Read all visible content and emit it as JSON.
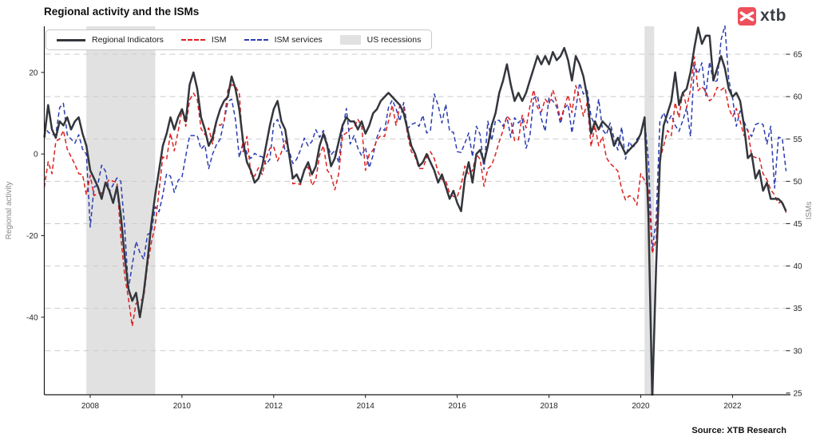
{
  "title": "Regional activity and the ISMs",
  "source_note": "Source: XTB Research",
  "logo": {
    "text": "xtb",
    "mark_color": "#ee4f5c",
    "text_color": "#3d3f46"
  },
  "legend": {
    "items": [
      {
        "label": "Regional Indicators",
        "swatch": "line-solid",
        "color": "#33363c"
      },
      {
        "label": "ISM",
        "swatch": "line-dashed",
        "color": "#dc2020"
      },
      {
        "label": "ISM services",
        "swatch": "line-dashed",
        "color": "#2a3cb0"
      },
      {
        "label": "US recessions",
        "swatch": "patch",
        "color": "#e1e1e1"
      }
    ]
  },
  "colors": {
    "regional": "#33363c",
    "ism": "#dc2020",
    "ism_services": "#2a3cb0",
    "recession_band": "#e1e1e1",
    "grid": "#cbcbcb",
    "spine": "#1a1a1a",
    "tick_label": "#262626",
    "axis_label": "#8a8a8a"
  },
  "axes": {
    "left_label": "Regional activity",
    "right_label": "ISMs",
    "left_ticks": [
      20,
      0,
      -20,
      -40
    ],
    "right_ticks": [
      65,
      60,
      55,
      50,
      45,
      40,
      35,
      30,
      25
    ],
    "x_ticks": [
      2008,
      2010,
      2012,
      2014,
      2016,
      2018,
      2020,
      2022
    ]
  },
  "chart_data": {
    "type": "line",
    "title": "Regional activity and the ISMs",
    "frequency": "monthly",
    "x_start": "2007-01",
    "x_end": "2023-03",
    "xlim": [
      2007.0,
      2023.167
    ],
    "left_ylim": [
      -59.0,
      31.3
    ],
    "right_ylim": [
      24.8,
      68.3
    ],
    "grid": "horizontal-dashed-at-right-ticks",
    "legend_position": "top-left",
    "recessions": [
      {
        "start": 2007.917,
        "end": 2009.417
      },
      {
        "start": 2020.083,
        "end": 2020.292
      }
    ],
    "series": [
      {
        "name": "Regional Indicators",
        "axis": "left",
        "style": "solid",
        "values": [
          4,
          12,
          6,
          4,
          8,
          7,
          9,
          6,
          8,
          9,
          5,
          2,
          -4,
          -6,
          -8,
          -11,
          -7,
          -9,
          -12,
          -8,
          -15,
          -25,
          -33,
          -36,
          -34,
          -40,
          -34,
          -26,
          -17,
          -10,
          -4,
          2,
          5,
          9,
          6,
          9,
          11,
          8,
          17,
          20,
          16,
          9,
          6,
          2,
          4,
          8,
          11,
          13,
          14,
          19,
          16,
          11,
          3,
          -2,
          -4,
          -7,
          -6,
          -3,
          2,
          7,
          11,
          13,
          8,
          6,
          0,
          -6,
          -5,
          -7,
          -4,
          -2,
          -5,
          -3,
          2,
          5,
          2,
          -3,
          -1,
          3,
          7,
          9,
          8,
          8,
          6,
          8,
          5,
          7,
          10,
          11,
          13,
          14,
          15,
          14,
          13,
          12,
          10,
          6,
          2,
          0,
          -3,
          -2,
          0,
          -2,
          -4,
          -7,
          -5,
          -8,
          -11,
          -9,
          -12,
          -14,
          -6,
          -2,
          -7,
          0,
          1,
          -2,
          2,
          7,
          10,
          15,
          18,
          22,
          17,
          13,
          15,
          13,
          15,
          18,
          21,
          24,
          22,
          24,
          22,
          25,
          23,
          24,
          26,
          23,
          18,
          24,
          22,
          19,
          14,
          5,
          8,
          6,
          8,
          7,
          6,
          2,
          4,
          2,
          0,
          1,
          2,
          3,
          5,
          9,
          -15,
          -60,
          -28,
          -2,
          7,
          10,
          13,
          20,
          12,
          15,
          16,
          20,
          26,
          31,
          27,
          29,
          29,
          18,
          21,
          24,
          21,
          16,
          14,
          15,
          13,
          7,
          -1,
          0,
          -6,
          -4,
          -9,
          -7,
          -11,
          -11,
          -11,
          -12,
          -14
        ]
      },
      {
        "name": "ISM",
        "axis": "right",
        "style": "dashed",
        "values": [
          49.3,
          52.3,
          50.9,
          54.7,
          55.0,
          56.0,
          53.8,
          52.9,
          52.0,
          50.9,
          50.8,
          48.4,
          50.7,
          48.3,
          48.6,
          48.6,
          49.6,
          50.2,
          50.0,
          49.9,
          43.5,
          38.9,
          36.2,
          32.9,
          35.6,
          35.8,
          36.3,
          40.1,
          42.8,
          44.8,
          48.9,
          52.9,
          52.6,
          55.7,
          53.6,
          55.9,
          58.4,
          56.5,
          59.6,
          60.4,
          59.7,
          56.2,
          55.5,
          56.3,
          54.4,
          56.9,
          56.6,
          57.0,
          60.8,
          61.4,
          61.2,
          60.4,
          53.5,
          55.3,
          50.9,
          50.6,
          51.6,
          50.8,
          52.7,
          53.9,
          54.1,
          52.4,
          53.4,
          54.8,
          53.5,
          49.7,
          49.8,
          49.6,
          51.5,
          51.7,
          49.5,
          50.2,
          53.1,
          54.2,
          51.3,
          50.7,
          49.0,
          50.9,
          55.4,
          55.7,
          56.2,
          56.4,
          57.3,
          56.5,
          51.3,
          53.2,
          53.7,
          54.9,
          55.4,
          55.3,
          57.1,
          59.0,
          56.6,
          59.0,
          58.7,
          55.5,
          53.5,
          52.9,
          51.5,
          51.5,
          52.8,
          53.5,
          52.7,
          51.1,
          50.2,
          50.1,
          48.6,
          48.2,
          48.2,
          49.5,
          51.8,
          50.8,
          51.3,
          53.2,
          52.6,
          49.4,
          51.5,
          51.9,
          53.2,
          54.7,
          56.0,
          57.7,
          57.2,
          54.8,
          54.9,
          57.8,
          56.3,
          58.8,
          60.8,
          58.7,
          58.2,
          59.7,
          59.1,
          60.8,
          59.3,
          57.3,
          58.7,
          60.2,
          58.1,
          61.3,
          59.8,
          57.7,
          59.3,
          54.1,
          56.6,
          54.2,
          55.3,
          52.8,
          52.1,
          51.7,
          51.2,
          49.1,
          47.8,
          48.3,
          48.1,
          47.2,
          50.9,
          50.1,
          49.1,
          41.5,
          43.1,
          52.6,
          54.2,
          56.0,
          55.4,
          59.3,
          57.5,
          60.7,
          58.7,
          60.8,
          64.7,
          60.7,
          61.2,
          60.6,
          59.5,
          59.9,
          61.1,
          60.8,
          61.1,
          58.7,
          57.6,
          58.6,
          57.1,
          55.4,
          56.1,
          53.0,
          52.8,
          52.8,
          50.9,
          50.2,
          49.0,
          48.4,
          47.4,
          47.7,
          46.3
        ]
      },
      {
        "name": "ISM services",
        "axis": "right",
        "style": "dashed",
        "values": [
          56.8,
          55.8,
          55.5,
          55.5,
          58.7,
          59.2,
          55.5,
          55.0,
          54.5,
          55.5,
          53.8,
          53.2,
          44.6,
          49.3,
          49.6,
          51.9,
          51.2,
          48.8,
          49.6,
          50.4,
          50.0,
          44.6,
          37.3,
          40.1,
          42.9,
          41.6,
          40.8,
          43.7,
          44.0,
          47.0,
          46.4,
          48.4,
          50.9,
          50.6,
          48.7,
          50.1,
          50.5,
          53.0,
          55.4,
          55.4,
          55.4,
          53.8,
          54.3,
          51.5,
          53.2,
          54.3,
          55.0,
          57.1,
          59.4,
          59.7,
          57.3,
          52.8,
          54.6,
          53.3,
          52.7,
          53.3,
          53.0,
          52.9,
          52.0,
          52.6,
          56.8,
          57.3,
          56.0,
          53.5,
          53.7,
          52.1,
          52.6,
          53.7,
          55.1,
          54.2,
          54.7,
          56.1,
          55.2,
          56.0,
          54.4,
          53.1,
          53.7,
          52.2,
          56.0,
          58.6,
          54.4,
          55.4,
          53.9,
          53.0,
          54.0,
          51.6,
          53.1,
          55.2,
          56.3,
          56.0,
          58.7,
          59.6,
          58.6,
          57.1,
          59.3,
          56.2,
          56.7,
          56.9,
          56.5,
          57.8,
          55.7,
          56.0,
          60.3,
          59.0,
          56.9,
          59.1,
          55.9,
          55.8,
          53.5,
          53.4,
          54.5,
          55.7,
          52.9,
          56.5,
          55.5,
          51.4,
          57.1,
          54.8,
          57.2,
          57.2,
          56.5,
          57.6,
          55.2,
          57.5,
          56.9,
          57.4,
          53.9,
          55.3,
          59.8,
          60.1,
          57.4,
          55.9,
          59.9,
          59.5,
          58.8,
          56.8,
          58.6,
          59.1,
          55.7,
          58.5,
          61.6,
          60.3,
          60.7,
          57.6,
          56.7,
          59.7,
          56.1,
          55.5,
          56.9,
          55.1,
          53.7,
          56.4,
          52.6,
          54.7,
          53.9,
          55.0,
          55.5,
          57.3,
          52.5,
          41.8,
          45.4,
          57.1,
          58.1,
          56.9,
          57.8,
          56.6,
          55.9,
          57.2,
          58.7,
          55.3,
          63.7,
          62.7,
          64.0,
          60.1,
          64.1,
          61.7,
          61.9,
          66.7,
          68.4,
          62.0,
          59.9,
          56.5,
          58.3,
          57.1,
          55.9,
          55.3,
          56.7,
          56.9,
          56.7,
          54.4,
          56.5,
          49.2,
          55.2,
          55.1,
          51.2
        ]
      }
    ]
  }
}
